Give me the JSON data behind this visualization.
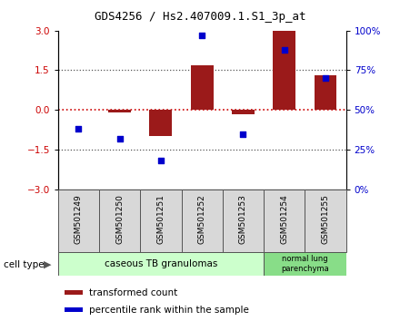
{
  "title": "GDS4256 / Hs2.407009.1.S1_3p_at",
  "samples": [
    "GSM501249",
    "GSM501250",
    "GSM501251",
    "GSM501252",
    "GSM501253",
    "GSM501254",
    "GSM501255"
  ],
  "transformed_count": [
    0.0,
    -0.1,
    -1.0,
    1.7,
    -0.15,
    3.0,
    1.3
  ],
  "percentile_rank": [
    38,
    32,
    18,
    97,
    35,
    88,
    70
  ],
  "bar_color": "#9b1a1a",
  "dot_color": "#0000cc",
  "ylim_left": [
    -3,
    3
  ],
  "ylim_right": [
    0,
    100
  ],
  "yticks_left": [
    -3,
    -1.5,
    0,
    1.5,
    3
  ],
  "yticks_right": [
    0,
    25,
    50,
    75,
    100
  ],
  "ytick_labels_right": [
    "0%",
    "25%",
    "50%",
    "75%",
    "100%"
  ],
  "zero_line_color": "#cc0000",
  "dotted_line_color": "#555555",
  "group1_label": "caseous TB granulomas",
  "group2_label": "normal lung\nparenchyma",
  "group1_color": "#ccffcc",
  "group2_color": "#88dd88",
  "cell_type_label": "cell type",
  "legend_bar_label": "transformed count",
  "legend_dot_label": "percentile rank within the sample",
  "plot_bg_color": "#ffffff",
  "sample_box_color": "#d8d8d8",
  "left_tick_color": "#cc0000",
  "right_tick_color": "#0000cc"
}
